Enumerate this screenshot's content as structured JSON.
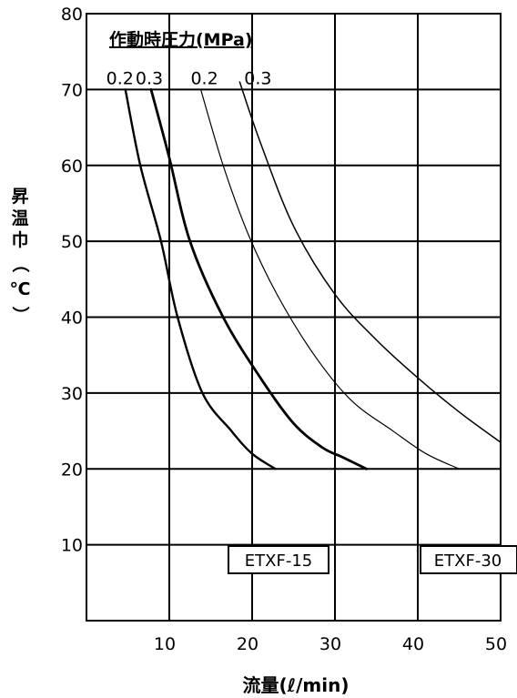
{
  "chart_data": {
    "type": "line",
    "xlabel": "流量(ℓ/min)",
    "ylabel": "昇温巾（℃）",
    "ylabel_chars": [
      "昇",
      "温",
      "巾",
      "（",
      "℃",
      "）"
    ],
    "xlim": [
      0,
      50
    ],
    "ylim": [
      0,
      80
    ],
    "x_ticks": [
      10,
      20,
      30,
      40,
      50
    ],
    "y_ticks": [
      10,
      20,
      30,
      40,
      50,
      60,
      70,
      80
    ],
    "grid": true,
    "pressure_header": "作動時圧力(MPa)",
    "series": [
      {
        "name": "0.2",
        "group": "ETXF-15",
        "pressure_label": "0.2",
        "color": "#000000",
        "points": [
          [
            4.7,
            70
          ],
          [
            6.5,
            60
          ],
          [
            9.0,
            50
          ],
          [
            11.0,
            40
          ],
          [
            14.0,
            30
          ],
          [
            17.5,
            25
          ],
          [
            20.0,
            22
          ],
          [
            22.8,
            20
          ]
        ]
      },
      {
        "name": "0.3",
        "group": "ETXF-15",
        "pressure_label": "0.3",
        "color": "#000000",
        "points": [
          [
            7.8,
            70
          ],
          [
            10.0,
            61
          ],
          [
            12.5,
            50
          ],
          [
            16.5,
            40
          ],
          [
            21.0,
            32
          ],
          [
            25.0,
            26
          ],
          [
            28.5,
            22.8
          ],
          [
            31.0,
            21.5
          ],
          [
            33.8,
            20
          ]
        ]
      },
      {
        "name": "0.2",
        "group": "ETXF-30",
        "pressure_label": "0.2",
        "color": "#000000",
        "points": [
          [
            13.8,
            70
          ],
          [
            16.5,
            60
          ],
          [
            19.5,
            51
          ],
          [
            23.0,
            43
          ],
          [
            27.5,
            35
          ],
          [
            32.0,
            29
          ],
          [
            37.0,
            25
          ],
          [
            41.0,
            22
          ],
          [
            45.0,
            20
          ]
        ]
      },
      {
        "name": "0.3",
        "group": "ETXF-30",
        "pressure_label": "0.3",
        "color": "#000000",
        "points": [
          [
            18.5,
            71
          ],
          [
            21.0,
            63
          ],
          [
            25.0,
            52
          ],
          [
            30.0,
            43
          ],
          [
            35.0,
            37
          ],
          [
            40.0,
            32
          ],
          [
            45.0,
            27.5
          ],
          [
            50.0,
            23.5
          ]
        ]
      }
    ],
    "annotations": [
      {
        "text": "ETXF-15"
      },
      {
        "text": "ETXF-30"
      }
    ]
  }
}
